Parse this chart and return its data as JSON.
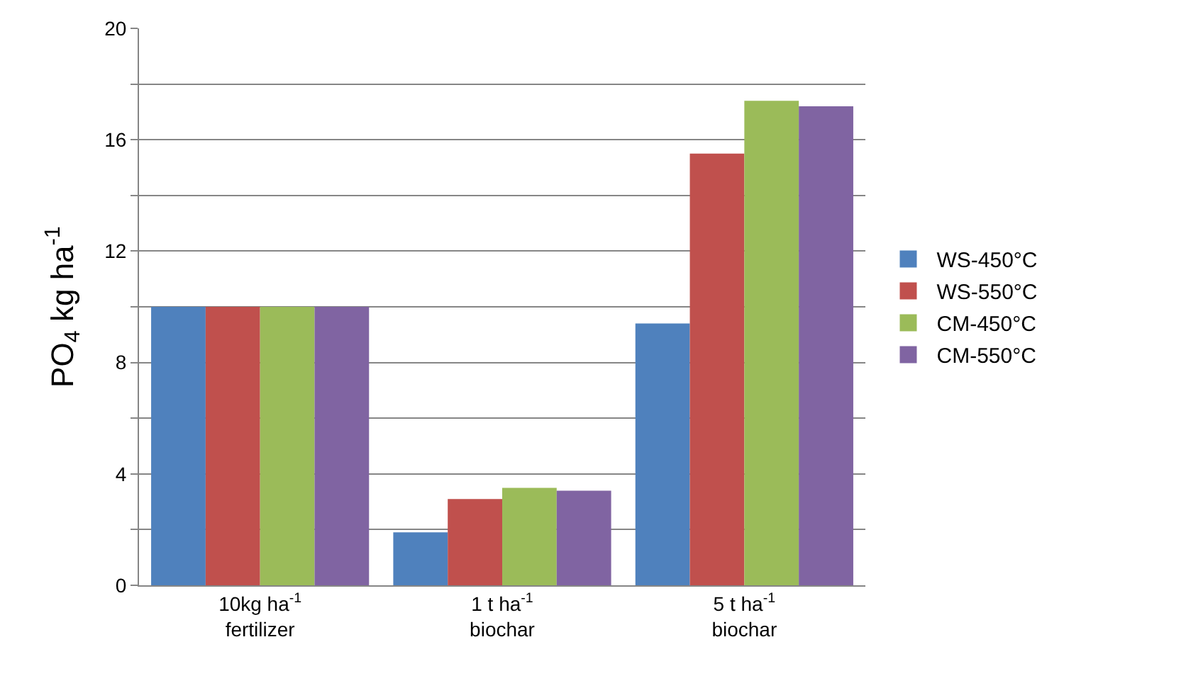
{
  "chart_data": {
    "type": "bar",
    "ylabel": "PO$_{4}$ kg ha$^{-1}$",
    "categories": [
      "10kg ha$^{-1}$\nfertilizer",
      "1 t ha$^{-1}$\nbiochar",
      "5 t ha$^{-1}$\nbiochar"
    ],
    "series": [
      {
        "name": "WS-450°C",
        "color": "#4f81bd",
        "values": [
          10.0,
          1.9,
          9.4
        ]
      },
      {
        "name": "WS-550°C",
        "color": "#c0504d",
        "values": [
          10.0,
          3.1,
          15.5
        ]
      },
      {
        "name": "CM-450°C",
        "color": "#9bbb59",
        "values": [
          10.0,
          3.5,
          17.4
        ]
      },
      {
        "name": "CM-550°C",
        "color": "#8064a2",
        "values": [
          10.0,
          3.4,
          17.2
        ]
      }
    ],
    "ylim": [
      0,
      20
    ],
    "yticks": [
      0,
      {
        "value": 2,
        "label": null
      },
      4,
      {
        "value": 6,
        "label": null
      },
      8,
      {
        "value": 10,
        "label": null
      },
      12,
      {
        "value": 14,
        "label": null
      },
      16,
      {
        "value": 18,
        "label": null
      },
      20
    ],
    "grid": "y",
    "legend": "right"
  }
}
